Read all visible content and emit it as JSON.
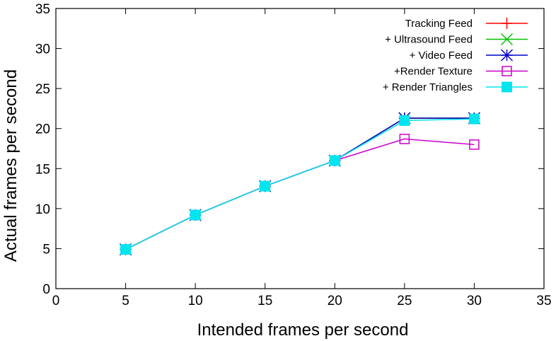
{
  "chart_data": {
    "type": "line",
    "title": "",
    "xlabel": "Intended frames per second",
    "ylabel": "Actual frames per second",
    "xlim": [
      0,
      35
    ],
    "ylim": [
      0,
      35
    ],
    "xticks": [
      0,
      5,
      10,
      15,
      20,
      25,
      30,
      35
    ],
    "yticks": [
      0,
      5,
      10,
      15,
      20,
      25,
      30,
      35
    ],
    "grid": false,
    "legend_position": "top-right",
    "x": [
      5,
      10,
      15,
      20,
      25,
      30
    ],
    "series": [
      {
        "name": "Tracking Feed",
        "color": "#ff0000",
        "marker": "plus",
        "values": [
          4.9,
          9.2,
          12.8,
          16.0,
          21.3,
          21.3
        ]
      },
      {
        "name": "+ Ultrasound Feed",
        "color": "#00c000",
        "marker": "x",
        "values": [
          4.9,
          9.2,
          12.8,
          16.0,
          21.3,
          21.3
        ]
      },
      {
        "name": "+ Video Feed",
        "color": "#0000cc",
        "marker": "star",
        "values": [
          4.9,
          9.2,
          12.8,
          16.0,
          21.3,
          21.3
        ]
      },
      {
        "name": "+Render Texture",
        "color": "#cc00cc",
        "marker": "open-square",
        "values": [
          4.9,
          9.2,
          12.8,
          16.0,
          18.7,
          18.0
        ]
      },
      {
        "name": "+ Render Triangles",
        "color": "#00e5ee",
        "marker": "filled-square",
        "values": [
          4.9,
          9.2,
          12.8,
          16.0,
          21.0,
          21.2
        ]
      }
    ]
  }
}
